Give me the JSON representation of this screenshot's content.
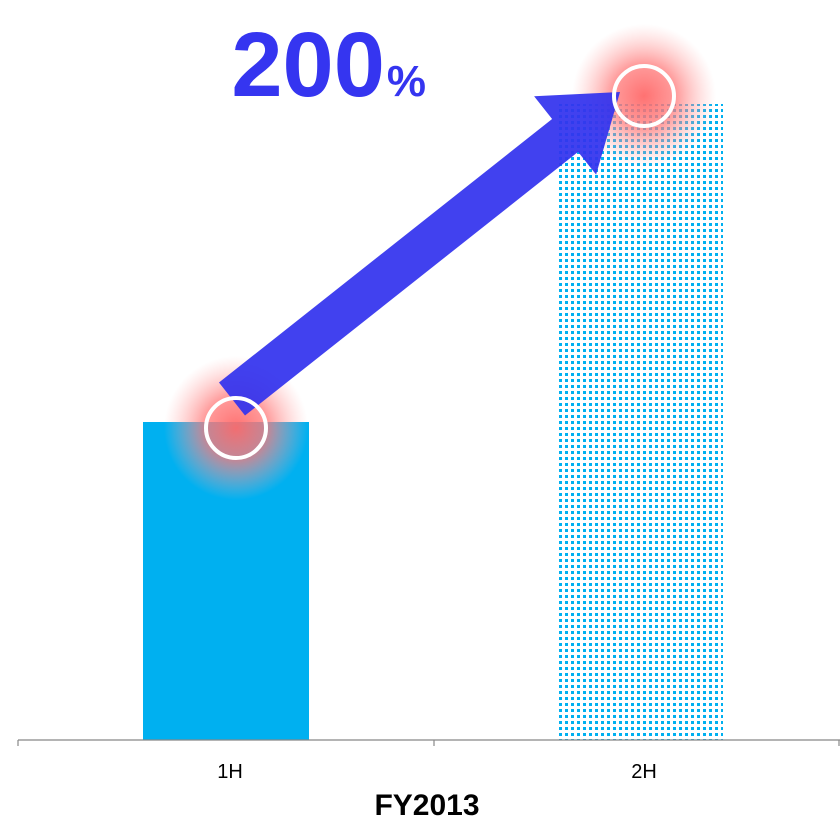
{
  "chart_data": {
    "type": "bar",
    "categories": [
      "1H",
      "2H"
    ],
    "values": [
      100,
      200
    ],
    "xlabel": "FY2013",
    "ylabel": "",
    "ylim": [
      0,
      200
    ],
    "grid": false,
    "legend": "none",
    "annotation": {
      "number": "200",
      "unit": "%"
    },
    "colors": {
      "bar_solid": "#00b0f0",
      "bar_dotted": "#00b0f0",
      "arrow": "#3333ee",
      "highlight": "#ff7a7a",
      "axis": "#888888"
    }
  }
}
